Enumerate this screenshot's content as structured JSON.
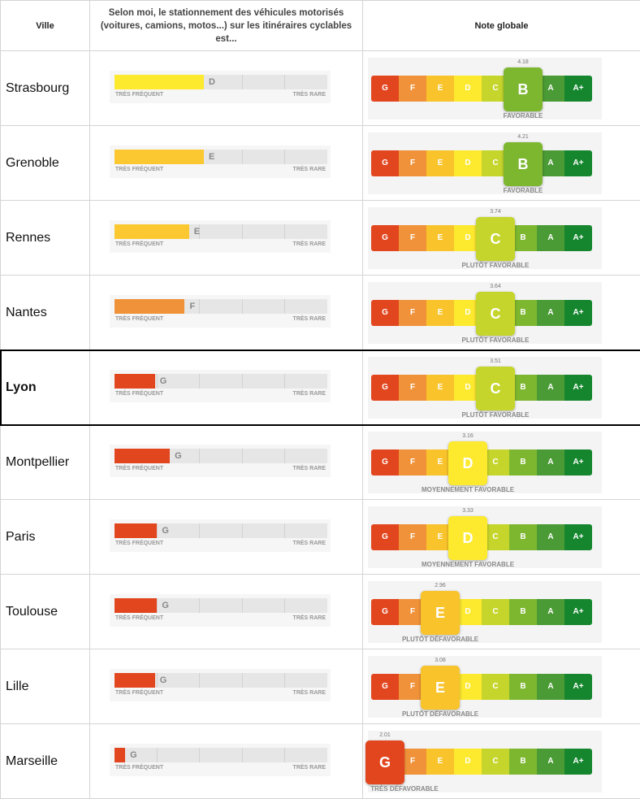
{
  "header": {
    "city": "Ville",
    "question": "Selon moi, le stationnement des véhicules motorisés (voitures, camions, motos...) sur les itinéraires cyclables est...",
    "score": "Note globale"
  },
  "scale": {
    "low": "TRÈS FRÉQUENT",
    "high": "TRÈS RARE"
  },
  "grades": [
    "G",
    "F",
    "E",
    "D",
    "C",
    "B",
    "A",
    "A+"
  ],
  "grade_colors": [
    "#e2461f",
    "#f0923a",
    "#f8c32b",
    "#fde92e",
    "#c5d52b",
    "#7db730",
    "#4a9a35",
    "#15862e"
  ],
  "rows": [
    {
      "city": "Strasbourg",
      "parking_grade": "D",
      "parking_fraction": 0.42,
      "score": "4.18",
      "grade": "B",
      "label": "FAVORABLE"
    },
    {
      "city": "Grenoble",
      "parking_grade": "E",
      "parking_fraction": 0.42,
      "score": "4.21",
      "grade": "B",
      "label": "FAVORABLE"
    },
    {
      "city": "Rennes",
      "parking_grade": "E",
      "parking_fraction": 0.35,
      "score": "3.74",
      "grade": "C",
      "label": "PLUTÔT FAVORABLE"
    },
    {
      "city": "Nantes",
      "parking_grade": "F",
      "parking_fraction": 0.33,
      "score": "3.64",
      "grade": "C",
      "label": "PLUTÔT FAVORABLE"
    },
    {
      "city": "Lyon",
      "parking_grade": "G",
      "parking_fraction": 0.19,
      "score": "3.51",
      "grade": "C",
      "label": "PLUTÔT FAVORABLE",
      "highlight": true
    },
    {
      "city": "Montpellier",
      "parking_grade": "G",
      "parking_fraction": 0.26,
      "score": "3.16",
      "grade": "D",
      "label": "MOYENNEMENT FAVORABLE"
    },
    {
      "city": "Paris",
      "parking_grade": "G",
      "parking_fraction": 0.2,
      "score": "3.33",
      "grade": "D",
      "label": "MOYENNEMENT FAVORABLE"
    },
    {
      "city": "Toulouse",
      "parking_grade": "G",
      "parking_fraction": 0.2,
      "score": "2.96",
      "grade": "E",
      "label": "PLUTÔT DÉFAVORABLE"
    },
    {
      "city": "Lille",
      "parking_grade": "G",
      "parking_fraction": 0.19,
      "score": "3.08",
      "grade": "E",
      "label": "PLUTÔT DÉFAVORABLE"
    },
    {
      "city": "Marseille",
      "parking_grade": "G",
      "parking_fraction": 0.05,
      "score": "2.01",
      "grade": "G",
      "label": "TRÈS DÉFAVORABLE"
    }
  ]
}
